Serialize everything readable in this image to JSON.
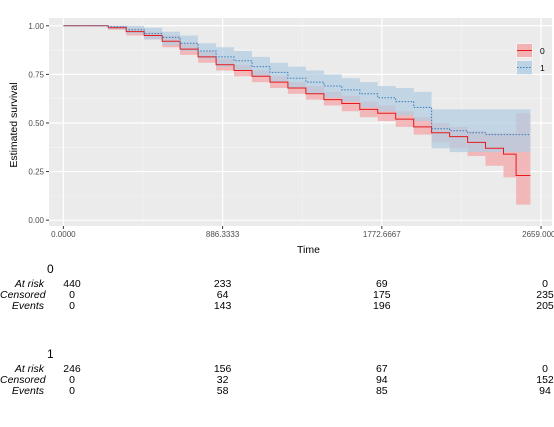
{
  "chart_data": {
    "type": "line",
    "xlabel": "Time",
    "ylabel": "Estimated survival",
    "xlim": [
      -80,
      2720
    ],
    "ylim": [
      -0.03,
      1.04
    ],
    "x_ticks": [
      "0.0000",
      "886.3333",
      "1772.6667",
      "2659.0000"
    ],
    "x_tick_values": [
      0,
      886.3333,
      1772.6667,
      2659
    ],
    "y_ticks": [
      "0.00",
      "0.25",
      "0.50",
      "0.75",
      "1.00"
    ],
    "y_tick_values": [
      0,
      0.25,
      0.5,
      0.75,
      1.0
    ],
    "grid": true,
    "legend_position": "right",
    "series": [
      {
        "name": "0",
        "color": "#e41a1c",
        "fill": "#f4a6a8",
        "line_style": "solid",
        "points": [
          [
            0,
            1.0
          ],
          [
            150,
            1.0
          ],
          [
            250,
            0.99
          ],
          [
            350,
            0.97
          ],
          [
            450,
            0.95
          ],
          [
            550,
            0.92
          ],
          [
            650,
            0.88
          ],
          [
            750,
            0.84
          ],
          [
            850,
            0.8
          ],
          [
            950,
            0.77
          ],
          [
            1050,
            0.74
          ],
          [
            1150,
            0.71
          ],
          [
            1250,
            0.68
          ],
          [
            1350,
            0.65
          ],
          [
            1450,
            0.62
          ],
          [
            1550,
            0.6
          ],
          [
            1650,
            0.57
          ],
          [
            1750,
            0.55
          ],
          [
            1850,
            0.52
          ],
          [
            1950,
            0.48
          ],
          [
            2050,
            0.45
          ],
          [
            2150,
            0.43
          ],
          [
            2250,
            0.4
          ],
          [
            2350,
            0.37
          ],
          [
            2450,
            0.34
          ],
          [
            2520,
            0.23
          ],
          [
            2600,
            0.23
          ]
        ],
        "upper": [
          [
            0,
            1.0
          ],
          [
            150,
            1.0
          ],
          [
            250,
            1.0
          ],
          [
            350,
            0.99
          ],
          [
            450,
            0.97
          ],
          [
            550,
            0.95
          ],
          [
            650,
            0.91
          ],
          [
            750,
            0.87
          ],
          [
            850,
            0.83
          ],
          [
            950,
            0.8
          ],
          [
            1050,
            0.77
          ],
          [
            1150,
            0.74
          ],
          [
            1250,
            0.71
          ],
          [
            1350,
            0.69
          ],
          [
            1450,
            0.66
          ],
          [
            1550,
            0.64
          ],
          [
            1650,
            0.61
          ],
          [
            1750,
            0.59
          ],
          [
            1850,
            0.56
          ],
          [
            1950,
            0.53
          ],
          [
            2050,
            0.5
          ],
          [
            2150,
            0.48
          ],
          [
            2250,
            0.46
          ],
          [
            2350,
            0.45
          ],
          [
            2450,
            0.45
          ],
          [
            2520,
            0.55
          ],
          [
            2600,
            0.55
          ]
        ],
        "lower": [
          [
            0,
            1.0
          ],
          [
            150,
            1.0
          ],
          [
            250,
            0.98
          ],
          [
            350,
            0.95
          ],
          [
            450,
            0.93
          ],
          [
            550,
            0.89
          ],
          [
            650,
            0.85
          ],
          [
            750,
            0.81
          ],
          [
            850,
            0.77
          ],
          [
            950,
            0.74
          ],
          [
            1050,
            0.71
          ],
          [
            1150,
            0.68
          ],
          [
            1250,
            0.65
          ],
          [
            1350,
            0.62
          ],
          [
            1450,
            0.59
          ],
          [
            1550,
            0.56
          ],
          [
            1650,
            0.53
          ],
          [
            1750,
            0.51
          ],
          [
            1850,
            0.48
          ],
          [
            1950,
            0.44
          ],
          [
            2050,
            0.4
          ],
          [
            2150,
            0.37
          ],
          [
            2250,
            0.33
          ],
          [
            2350,
            0.28
          ],
          [
            2450,
            0.22
          ],
          [
            2520,
            0.08
          ],
          [
            2600,
            0.08
          ]
        ]
      },
      {
        "name": "1",
        "color": "#377eb8",
        "fill": "#b3cde3",
        "line_style": "dotted",
        "points": [
          [
            0,
            1.0
          ],
          [
            150,
            1.0
          ],
          [
            250,
            0.995
          ],
          [
            350,
            0.98
          ],
          [
            450,
            0.96
          ],
          [
            550,
            0.94
          ],
          [
            650,
            0.91
          ],
          [
            750,
            0.87
          ],
          [
            850,
            0.84
          ],
          [
            950,
            0.82
          ],
          [
            1050,
            0.79
          ],
          [
            1150,
            0.76
          ],
          [
            1250,
            0.73
          ],
          [
            1350,
            0.71
          ],
          [
            1450,
            0.69
          ],
          [
            1550,
            0.67
          ],
          [
            1650,
            0.65
          ],
          [
            1750,
            0.63
          ],
          [
            1850,
            0.61
          ],
          [
            1950,
            0.58
          ],
          [
            2050,
            0.47
          ],
          [
            2150,
            0.46
          ],
          [
            2250,
            0.45
          ],
          [
            2350,
            0.44
          ],
          [
            2450,
            0.44
          ],
          [
            2600,
            0.44
          ]
        ],
        "upper": [
          [
            0,
            1.0
          ],
          [
            150,
            1.0
          ],
          [
            250,
            1.0
          ],
          [
            350,
            1.0
          ],
          [
            450,
            0.99
          ],
          [
            550,
            0.97
          ],
          [
            650,
            0.95
          ],
          [
            750,
            0.91
          ],
          [
            850,
            0.89
          ],
          [
            950,
            0.87
          ],
          [
            1050,
            0.84
          ],
          [
            1150,
            0.81
          ],
          [
            1250,
            0.79
          ],
          [
            1350,
            0.77
          ],
          [
            1450,
            0.75
          ],
          [
            1550,
            0.73
          ],
          [
            1650,
            0.71
          ],
          [
            1750,
            0.69
          ],
          [
            1850,
            0.68
          ],
          [
            1950,
            0.66
          ],
          [
            2050,
            0.57
          ],
          [
            2150,
            0.57
          ],
          [
            2250,
            0.57
          ],
          [
            2350,
            0.57
          ],
          [
            2450,
            0.57
          ],
          [
            2600,
            0.57
          ]
        ],
        "lower": [
          [
            0,
            1.0
          ],
          [
            150,
            1.0
          ],
          [
            250,
            0.985
          ],
          [
            350,
            0.96
          ],
          [
            450,
            0.93
          ],
          [
            550,
            0.9
          ],
          [
            650,
            0.87
          ],
          [
            750,
            0.83
          ],
          [
            850,
            0.79
          ],
          [
            950,
            0.77
          ],
          [
            1050,
            0.74
          ],
          [
            1150,
            0.71
          ],
          [
            1250,
            0.68
          ],
          [
            1350,
            0.65
          ],
          [
            1450,
            0.63
          ],
          [
            1550,
            0.61
          ],
          [
            1650,
            0.58
          ],
          [
            1750,
            0.56
          ],
          [
            1850,
            0.54
          ],
          [
            1950,
            0.51
          ],
          [
            2050,
            0.37
          ],
          [
            2150,
            0.35
          ],
          [
            2250,
            0.35
          ],
          [
            2350,
            0.35
          ],
          [
            2450,
            0.35
          ],
          [
            2600,
            0.35
          ]
        ]
      }
    ]
  },
  "risk_labels": [
    "At risk",
    "Censored",
    "Events"
  ],
  "risk_tables": [
    {
      "title": "0",
      "rows": [
        [
          "440",
          "233",
          "69",
          "0"
        ],
        [
          "0",
          "64",
          "175",
          "235"
        ],
        [
          "0",
          "143",
          "196",
          "205"
        ]
      ]
    },
    {
      "title": "1",
      "rows": [
        [
          "246",
          "156",
          "67",
          "0"
        ],
        [
          "0",
          "32",
          "94",
          "152"
        ],
        [
          "0",
          "58",
          "85",
          "94"
        ]
      ]
    }
  ]
}
